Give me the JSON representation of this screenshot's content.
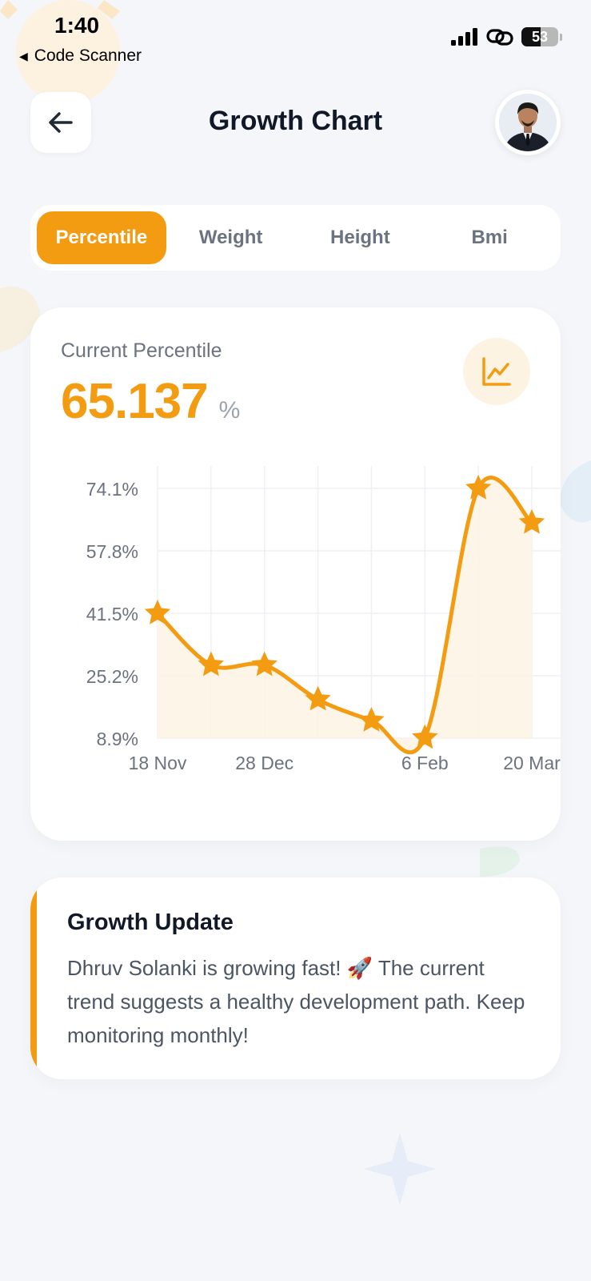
{
  "status_bar": {
    "time": "1:40",
    "back_app": "Code Scanner",
    "battery": "53"
  },
  "header": {
    "title": "Growth Chart"
  },
  "tabs": [
    {
      "label": "Percentile",
      "active": true
    },
    {
      "label": "Weight",
      "active": false
    },
    {
      "label": "Height",
      "active": false
    },
    {
      "label": "Bmi",
      "active": false
    }
  ],
  "percentile_card": {
    "label": "Current Percentile",
    "value": "65.137",
    "unit": "%"
  },
  "chart_data": {
    "type": "line",
    "y_tick_labels": [
      "74.1%",
      "57.8%",
      "41.5%",
      "25.2%",
      "8.9%"
    ],
    "y_ticks": [
      74.1,
      57.8,
      41.5,
      25.2,
      8.9
    ],
    "ylim": [
      8.9,
      74.1
    ],
    "x_tick_labels": [
      "18 Nov",
      "28 Dec",
      "6 Feb",
      "20 Mar"
    ],
    "x_tick_points": [
      0,
      2,
      5,
      7
    ],
    "values": [
      41.5,
      28.0,
      28.0,
      19.0,
      13.5,
      9.0,
      74.1,
      65.137
    ],
    "marker": "star",
    "color": "#f39c12",
    "fill": "#fdf3e3",
    "grid": true
  },
  "update": {
    "title": "Growth Update",
    "text": "Dhruv Solanki is growing fast! 🚀 The current trend suggests a healthy development path. Keep monitoring monthly!"
  },
  "colors": {
    "accent": "#f39c12",
    "background": "#f4f6f9"
  }
}
